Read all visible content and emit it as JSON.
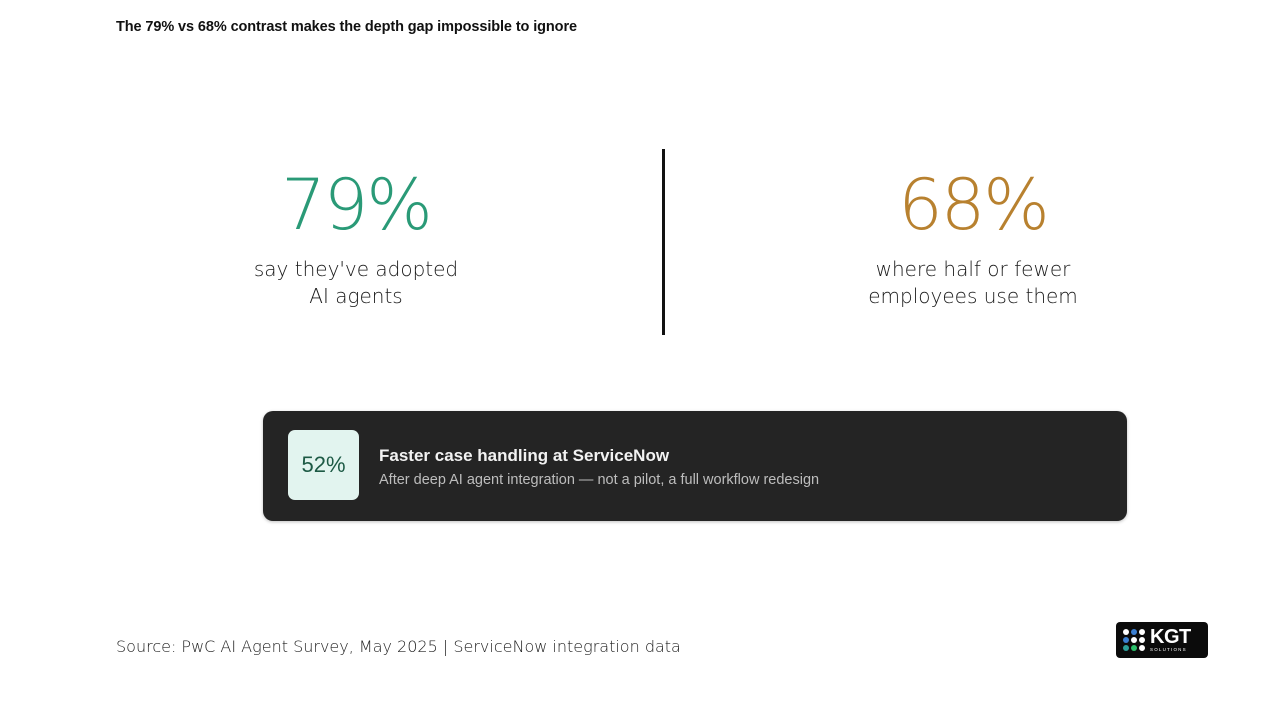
{
  "slide": {
    "title": "The 79% vs 68% contrast makes the depth gap impossible to ignore"
  },
  "stats": [
    {
      "value": "79%",
      "caption": "say they've adopted\nAI agents",
      "color": "#2a9a77"
    },
    {
      "value": "68%",
      "caption": "where half or fewer\nemployees use them",
      "color": "#b8812f"
    }
  ],
  "callout": {
    "badge": "52%",
    "title": "Faster case handling at ServiceNow",
    "subtitle": "After deep AI agent integration — not a pilot, a full workflow redesign",
    "background": "#242424",
    "badge_background": "#e2f4ef"
  },
  "footer": {
    "source": "Source: PwC AI Agent Survey, May 2025 | ServiceNow integration data"
  },
  "logo": {
    "name": "KGT",
    "tagline": "SOLUTIONS",
    "icon": "dot-grid-icon"
  }
}
